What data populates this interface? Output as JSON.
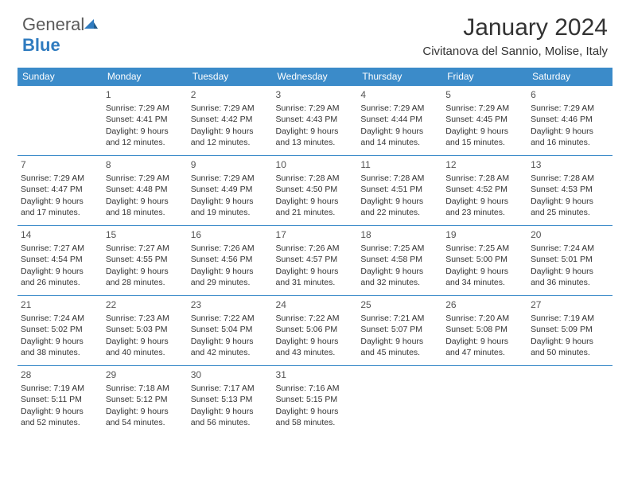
{
  "logo": {
    "text1": "General",
    "text2": "Blue"
  },
  "title": "January 2024",
  "location": "Civitanova del Sannio, Molise, Italy",
  "colors": {
    "header_bg": "#3b8bc9",
    "header_text": "#ffffff",
    "border": "#3b8bc9",
    "body_text": "#333333",
    "logo_gray": "#5a5a5a",
    "logo_blue": "#2f7bbf"
  },
  "dayHeaders": [
    "Sunday",
    "Monday",
    "Tuesday",
    "Wednesday",
    "Thursday",
    "Friday",
    "Saturday"
  ],
  "weeks": [
    [
      null,
      {
        "n": "1",
        "sr": "Sunrise: 7:29 AM",
        "ss": "Sunset: 4:41 PM",
        "d1": "Daylight: 9 hours",
        "d2": "and 12 minutes."
      },
      {
        "n": "2",
        "sr": "Sunrise: 7:29 AM",
        "ss": "Sunset: 4:42 PM",
        "d1": "Daylight: 9 hours",
        "d2": "and 12 minutes."
      },
      {
        "n": "3",
        "sr": "Sunrise: 7:29 AM",
        "ss": "Sunset: 4:43 PM",
        "d1": "Daylight: 9 hours",
        "d2": "and 13 minutes."
      },
      {
        "n": "4",
        "sr": "Sunrise: 7:29 AM",
        "ss": "Sunset: 4:44 PM",
        "d1": "Daylight: 9 hours",
        "d2": "and 14 minutes."
      },
      {
        "n": "5",
        "sr": "Sunrise: 7:29 AM",
        "ss": "Sunset: 4:45 PM",
        "d1": "Daylight: 9 hours",
        "d2": "and 15 minutes."
      },
      {
        "n": "6",
        "sr": "Sunrise: 7:29 AM",
        "ss": "Sunset: 4:46 PM",
        "d1": "Daylight: 9 hours",
        "d2": "and 16 minutes."
      }
    ],
    [
      {
        "n": "7",
        "sr": "Sunrise: 7:29 AM",
        "ss": "Sunset: 4:47 PM",
        "d1": "Daylight: 9 hours",
        "d2": "and 17 minutes."
      },
      {
        "n": "8",
        "sr": "Sunrise: 7:29 AM",
        "ss": "Sunset: 4:48 PM",
        "d1": "Daylight: 9 hours",
        "d2": "and 18 minutes."
      },
      {
        "n": "9",
        "sr": "Sunrise: 7:29 AM",
        "ss": "Sunset: 4:49 PM",
        "d1": "Daylight: 9 hours",
        "d2": "and 19 minutes."
      },
      {
        "n": "10",
        "sr": "Sunrise: 7:28 AM",
        "ss": "Sunset: 4:50 PM",
        "d1": "Daylight: 9 hours",
        "d2": "and 21 minutes."
      },
      {
        "n": "11",
        "sr": "Sunrise: 7:28 AM",
        "ss": "Sunset: 4:51 PM",
        "d1": "Daylight: 9 hours",
        "d2": "and 22 minutes."
      },
      {
        "n": "12",
        "sr": "Sunrise: 7:28 AM",
        "ss": "Sunset: 4:52 PM",
        "d1": "Daylight: 9 hours",
        "d2": "and 23 minutes."
      },
      {
        "n": "13",
        "sr": "Sunrise: 7:28 AM",
        "ss": "Sunset: 4:53 PM",
        "d1": "Daylight: 9 hours",
        "d2": "and 25 minutes."
      }
    ],
    [
      {
        "n": "14",
        "sr": "Sunrise: 7:27 AM",
        "ss": "Sunset: 4:54 PM",
        "d1": "Daylight: 9 hours",
        "d2": "and 26 minutes."
      },
      {
        "n": "15",
        "sr": "Sunrise: 7:27 AM",
        "ss": "Sunset: 4:55 PM",
        "d1": "Daylight: 9 hours",
        "d2": "and 28 minutes."
      },
      {
        "n": "16",
        "sr": "Sunrise: 7:26 AM",
        "ss": "Sunset: 4:56 PM",
        "d1": "Daylight: 9 hours",
        "d2": "and 29 minutes."
      },
      {
        "n": "17",
        "sr": "Sunrise: 7:26 AM",
        "ss": "Sunset: 4:57 PM",
        "d1": "Daylight: 9 hours",
        "d2": "and 31 minutes."
      },
      {
        "n": "18",
        "sr": "Sunrise: 7:25 AM",
        "ss": "Sunset: 4:58 PM",
        "d1": "Daylight: 9 hours",
        "d2": "and 32 minutes."
      },
      {
        "n": "19",
        "sr": "Sunrise: 7:25 AM",
        "ss": "Sunset: 5:00 PM",
        "d1": "Daylight: 9 hours",
        "d2": "and 34 minutes."
      },
      {
        "n": "20",
        "sr": "Sunrise: 7:24 AM",
        "ss": "Sunset: 5:01 PM",
        "d1": "Daylight: 9 hours",
        "d2": "and 36 minutes."
      }
    ],
    [
      {
        "n": "21",
        "sr": "Sunrise: 7:24 AM",
        "ss": "Sunset: 5:02 PM",
        "d1": "Daylight: 9 hours",
        "d2": "and 38 minutes."
      },
      {
        "n": "22",
        "sr": "Sunrise: 7:23 AM",
        "ss": "Sunset: 5:03 PM",
        "d1": "Daylight: 9 hours",
        "d2": "and 40 minutes."
      },
      {
        "n": "23",
        "sr": "Sunrise: 7:22 AM",
        "ss": "Sunset: 5:04 PM",
        "d1": "Daylight: 9 hours",
        "d2": "and 42 minutes."
      },
      {
        "n": "24",
        "sr": "Sunrise: 7:22 AM",
        "ss": "Sunset: 5:06 PM",
        "d1": "Daylight: 9 hours",
        "d2": "and 43 minutes."
      },
      {
        "n": "25",
        "sr": "Sunrise: 7:21 AM",
        "ss": "Sunset: 5:07 PM",
        "d1": "Daylight: 9 hours",
        "d2": "and 45 minutes."
      },
      {
        "n": "26",
        "sr": "Sunrise: 7:20 AM",
        "ss": "Sunset: 5:08 PM",
        "d1": "Daylight: 9 hours",
        "d2": "and 47 minutes."
      },
      {
        "n": "27",
        "sr": "Sunrise: 7:19 AM",
        "ss": "Sunset: 5:09 PM",
        "d1": "Daylight: 9 hours",
        "d2": "and 50 minutes."
      }
    ],
    [
      {
        "n": "28",
        "sr": "Sunrise: 7:19 AM",
        "ss": "Sunset: 5:11 PM",
        "d1": "Daylight: 9 hours",
        "d2": "and 52 minutes."
      },
      {
        "n": "29",
        "sr": "Sunrise: 7:18 AM",
        "ss": "Sunset: 5:12 PM",
        "d1": "Daylight: 9 hours",
        "d2": "and 54 minutes."
      },
      {
        "n": "30",
        "sr": "Sunrise: 7:17 AM",
        "ss": "Sunset: 5:13 PM",
        "d1": "Daylight: 9 hours",
        "d2": "and 56 minutes."
      },
      {
        "n": "31",
        "sr": "Sunrise: 7:16 AM",
        "ss": "Sunset: 5:15 PM",
        "d1": "Daylight: 9 hours",
        "d2": "and 58 minutes."
      },
      null,
      null,
      null
    ]
  ]
}
